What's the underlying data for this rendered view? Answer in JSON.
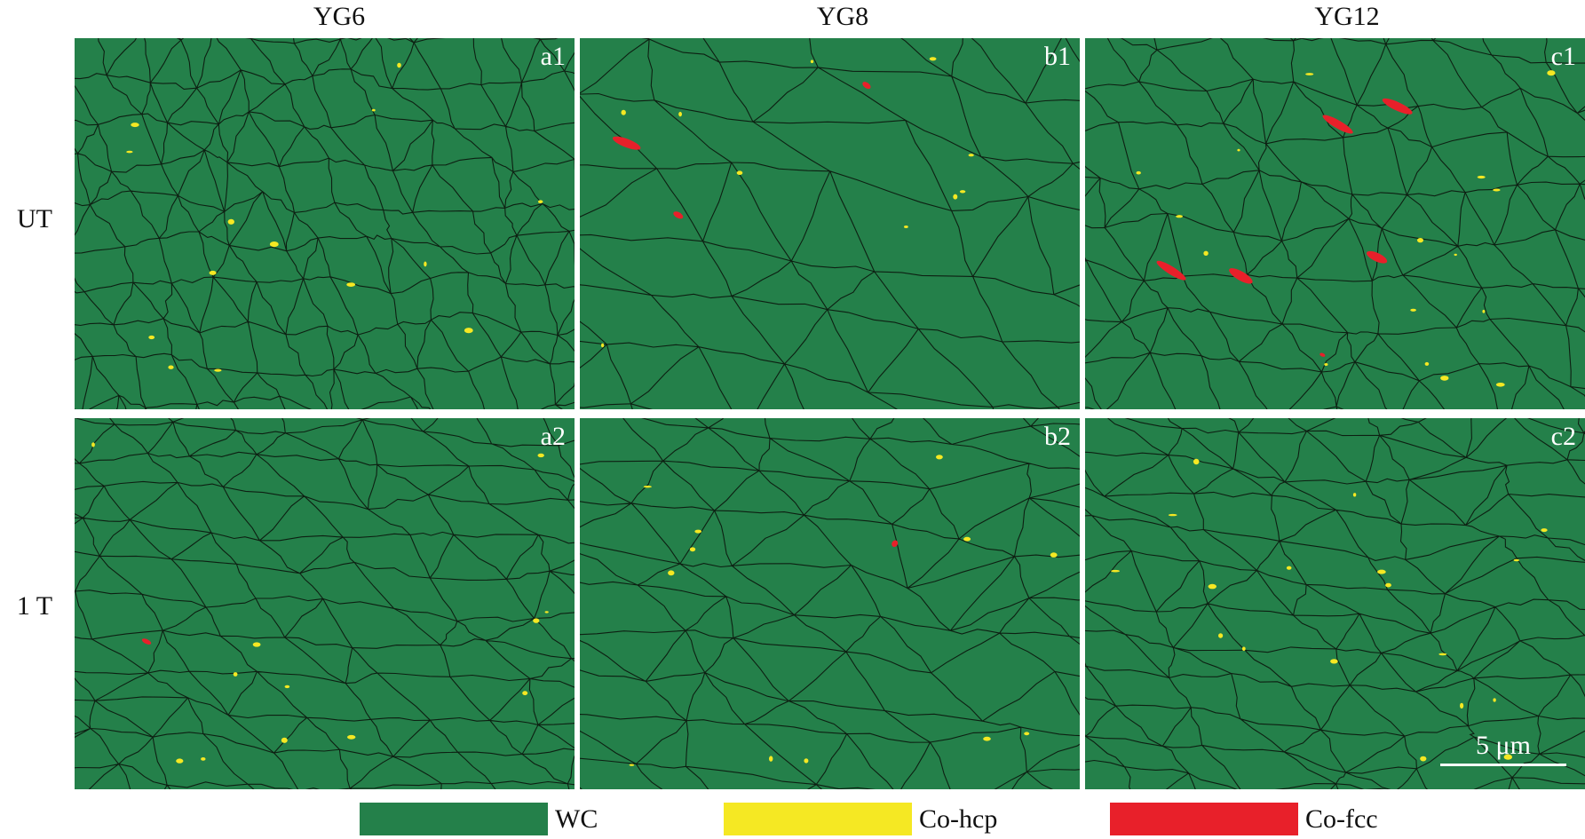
{
  "columns": [
    "YG6",
    "YG8",
    "YG12"
  ],
  "rows": [
    "UT",
    "1 T"
  ],
  "panels": [
    {
      "label": "a1"
    },
    {
      "label": "b1"
    },
    {
      "label": "c1"
    },
    {
      "label": "a2"
    },
    {
      "label": "b2"
    },
    {
      "label": "c2"
    }
  ],
  "scale_bar": {
    "label": "5 μm"
  },
  "legend": [
    {
      "label": "WC",
      "color": "#24804a"
    },
    {
      "label": "Co-hcp",
      "color": "#f5e823"
    },
    {
      "label": "Co-fcc",
      "color": "#e8202a"
    }
  ],
  "colors": {
    "grain_boundary": "#0d1f12",
    "wc": "#24804a",
    "co_hcp": "#f5e823",
    "co_fcc": "#e8202a"
  }
}
